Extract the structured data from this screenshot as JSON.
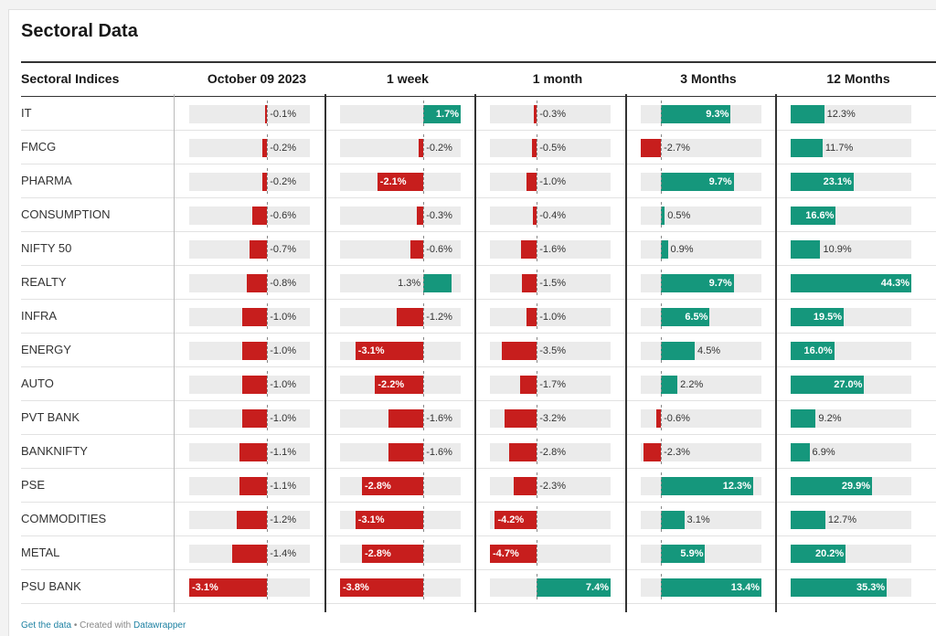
{
  "title": "Sectoral Data",
  "colors": {
    "negative": "#c71e1d",
    "positive": "#15977c"
  },
  "columns": [
    "Sectoral Indices",
    "October 09 2023",
    "1 week",
    "1 month",
    "3 Months",
    "12 Months"
  ],
  "scales": [
    [
      -3.1,
      1.7
    ],
    [
      -3.8,
      1.7
    ],
    [
      -4.7,
      7.4
    ],
    [
      -2.7,
      13.4
    ],
    [
      0,
      44.3
    ]
  ],
  "rows": [
    {
      "name": "IT",
      "values": [
        -0.1,
        1.7,
        -0.3,
        9.3,
        12.3
      ],
      "labels": [
        "-0.1%",
        "1.7%",
        "-0.3%",
        "9.3%",
        "12.3%"
      ]
    },
    {
      "name": "FMCG",
      "values": [
        -0.2,
        -0.2,
        -0.5,
        -2.7,
        11.7
      ],
      "labels": [
        "-0.2%",
        "-0.2%",
        "-0.5%",
        "-2.7%",
        "11.7%"
      ]
    },
    {
      "name": "PHARMA",
      "values": [
        -0.2,
        -2.1,
        -1.0,
        9.7,
        23.1
      ],
      "labels": [
        "-0.2%",
        "-2.1%",
        "-1.0%",
        "9.7%",
        "23.1%"
      ]
    },
    {
      "name": "CONSUMPTION",
      "values": [
        -0.6,
        -0.3,
        -0.4,
        0.5,
        16.6
      ],
      "labels": [
        "-0.6%",
        "-0.3%",
        "-0.4%",
        "0.5%",
        "16.6%"
      ]
    },
    {
      "name": "NIFTY 50",
      "values": [
        -0.7,
        -0.6,
        -1.6,
        0.9,
        10.9
      ],
      "labels": [
        "-0.7%",
        "-0.6%",
        "-1.6%",
        "0.9%",
        "10.9%"
      ]
    },
    {
      "name": "REALTY",
      "values": [
        -0.8,
        1.3,
        -1.5,
        9.7,
        44.3
      ],
      "labels": [
        "-0.8%",
        "1.3%",
        "-1.5%",
        "9.7%",
        "44.3%"
      ]
    },
    {
      "name": "INFRA",
      "values": [
        -1.0,
        -1.2,
        -1.0,
        6.5,
        19.5
      ],
      "labels": [
        "-1.0%",
        "-1.2%",
        "-1.0%",
        "6.5%",
        "19.5%"
      ]
    },
    {
      "name": "ENERGY",
      "values": [
        -1.0,
        -3.1,
        -3.5,
        4.5,
        16.0
      ],
      "labels": [
        "-1.0%",
        "-3.1%",
        "-3.5%",
        "4.5%",
        "16.0%"
      ]
    },
    {
      "name": "AUTO",
      "values": [
        -1.0,
        -2.2,
        -1.7,
        2.2,
        27.0
      ],
      "labels": [
        "-1.0%",
        "-2.2%",
        "-1.7%",
        "2.2%",
        "27.0%"
      ]
    },
    {
      "name": "PVT BANK",
      "values": [
        -1.0,
        -1.6,
        -3.2,
        -0.6,
        9.2
      ],
      "labels": [
        "-1.0%",
        "-1.6%",
        "-3.2%",
        "-0.6%",
        "9.2%"
      ]
    },
    {
      "name": "BANKNIFTY",
      "values": [
        -1.1,
        -1.6,
        -2.8,
        -2.3,
        6.9
      ],
      "labels": [
        "-1.1%",
        "-1.6%",
        "-2.8%",
        "-2.3%",
        "6.9%"
      ]
    },
    {
      "name": "PSE",
      "values": [
        -1.1,
        -2.8,
        -2.3,
        12.3,
        29.9
      ],
      "labels": [
        "-1.1%",
        "-2.8%",
        "-2.3%",
        "12.3%",
        "29.9%"
      ]
    },
    {
      "name": "COMMODITIES",
      "values": [
        -1.2,
        -3.1,
        -4.2,
        3.1,
        12.7
      ],
      "labels": [
        "-1.2%",
        "-3.1%",
        "-4.2%",
        "3.1%",
        "12.7%"
      ]
    },
    {
      "name": "METAL",
      "values": [
        -1.4,
        -2.8,
        -4.7,
        5.9,
        20.2
      ],
      "labels": [
        "-1.4%",
        "-2.8%",
        "-4.7%",
        "5.9%",
        "20.2%"
      ]
    },
    {
      "name": "PSU BANK",
      "values": [
        -3.1,
        -3.8,
        7.4,
        13.4,
        35.3
      ],
      "labels": [
        "-3.1%",
        "-3.8%",
        "7.4%",
        "13.4%",
        "35.3%"
      ]
    }
  ],
  "footer": {
    "get_data": "Get the data",
    "separator": " • Created with ",
    "datawrapper": "Datawrapper"
  }
}
